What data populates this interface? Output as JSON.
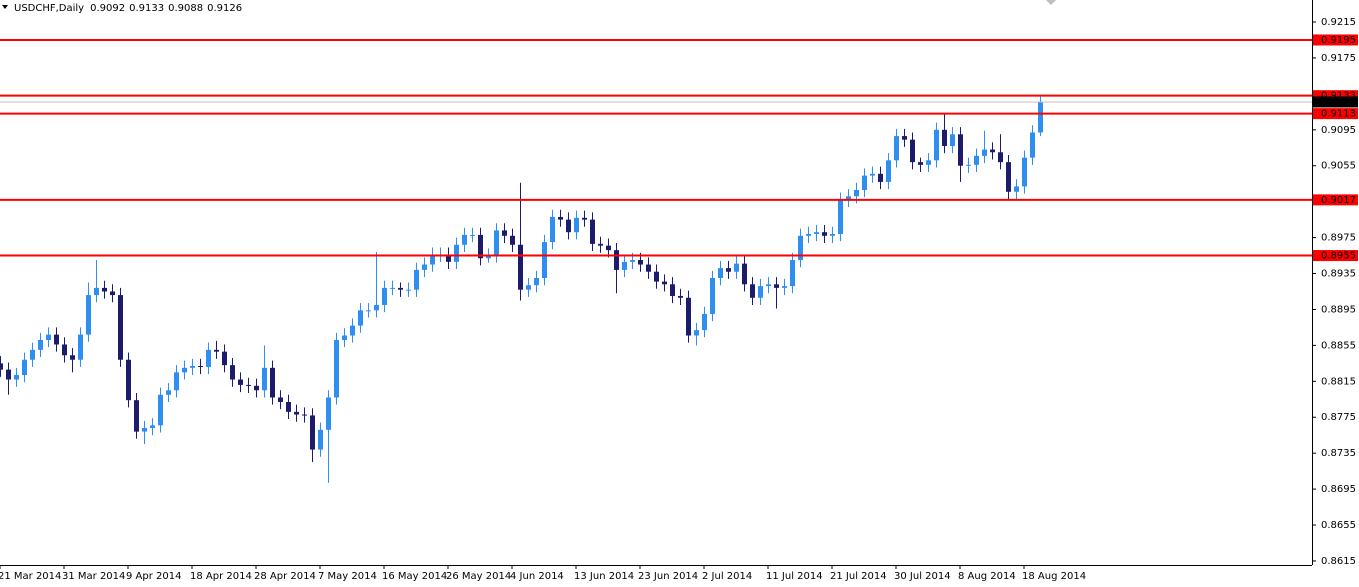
{
  "chart_data": {
    "type": "candlestick",
    "title": "USDCHF,Daily",
    "categories": [
      "21 Mar 2014",
      null,
      null,
      null,
      null,
      null,
      null,
      null,
      "31 Mar 2014",
      null,
      null,
      null,
      null,
      null,
      null,
      null,
      "9 Apr 2014",
      null,
      null,
      null,
      null,
      null,
      null,
      null,
      "18 Apr 2014",
      null,
      null,
      null,
      null,
      null,
      null,
      null,
      "28 Apr 2014",
      null,
      null,
      null,
      null,
      null,
      null,
      null,
      "7 May 2014",
      null,
      null,
      null,
      null,
      null,
      null,
      null,
      "16 May 2014",
      null,
      null,
      null,
      null,
      null,
      null,
      null,
      "26 May 2014",
      null,
      null,
      null,
      null,
      null,
      null,
      null,
      "4 Jun 2014",
      null,
      null,
      null,
      null,
      null,
      null,
      null,
      "13 Jun 2014",
      null,
      null,
      null,
      null,
      null,
      null,
      null,
      "23 Jun 2014",
      null,
      null,
      null,
      null,
      null,
      null,
      null,
      "2 Jul 2014",
      null,
      null,
      null,
      null,
      null,
      null,
      null,
      "11 Jul 2014",
      null,
      null,
      null,
      null,
      null,
      null,
      null,
      "21 Jul 2014",
      null,
      null,
      null,
      null,
      null,
      null,
      null,
      "30 Jul 2014",
      null,
      null,
      null,
      null,
      null,
      null,
      null,
      "8 Aug 2014",
      null,
      null,
      null,
      null,
      null,
      null,
      null,
      "18 Aug 2014",
      null,
      null
    ],
    "open": [
      0.8835,
      0.8828,
      0.8817,
      0.8822,
      0.8839,
      0.885,
      0.8861,
      0.8867,
      0.8856,
      0.8844,
      0.8839,
      0.8867,
      0.8911,
      0.8919,
      0.8915,
      0.8911,
      0.8839,
      0.8794,
      0.8759,
      0.8763,
      0.8766,
      0.88,
      0.8805,
      0.8825,
      0.883,
      0.8832,
      0.8831,
      0.885,
      0.8848,
      0.8833,
      0.8817,
      0.8811,
      0.881,
      0.8805,
      0.883,
      0.8797,
      0.8792,
      0.8781,
      0.8778,
      0.8777,
      0.8739,
      0.8761,
      0.8797,
      0.8861,
      0.8866,
      0.8877,
      0.8894,
      0.8894,
      0.89,
      0.8919,
      0.8919,
      0.8917,
      0.8917,
      0.8939,
      0.8945,
      0.8956,
      0.8956,
      0.8948,
      0.8967,
      0.8978,
      0.8978,
      0.8952,
      0.8955,
      0.8983,
      0.8977,
      0.8967,
      0.8917,
      0.8922,
      0.893,
      0.897,
      0.8998,
      0.8995,
      0.8981,
      0.8997,
      0.8995,
      0.8968,
      0.8966,
      0.8961,
      0.8939,
      0.8948,
      0.895,
      0.8945,
      0.8937,
      0.8926,
      0.8923,
      0.891,
      0.8908,
      0.8866,
      0.8872,
      0.889,
      0.893,
      0.8941,
      0.8937,
      0.8946,
      0.8923,
      0.8908,
      0.8921,
      0.8923,
      0.8919,
      0.8921,
      0.895,
      0.8977,
      0.8979,
      0.8981,
      0.8977,
      0.8979,
      0.9017,
      0.9021,
      0.9028,
      0.9044,
      0.9046,
      0.9037,
      0.9061,
      0.9088,
      0.9084,
      0.9059,
      0.9056,
      0.9061,
      0.9095,
      0.9077,
      0.909,
      0.9055,
      0.9056,
      0.9066,
      0.9073,
      0.907,
      0.9059,
      0.9026,
      0.9032,
      0.9064,
      0.9092
    ],
    "high": [
      0.8843,
      0.8836,
      0.883,
      0.8847,
      0.8858,
      0.8869,
      0.8875,
      0.8875,
      0.8864,
      0.8852,
      0.8875,
      0.8925,
      0.895,
      0.8927,
      0.8923,
      0.8919,
      0.8847,
      0.8802,
      0.8771,
      0.8774,
      0.8808,
      0.8813,
      0.8833,
      0.8838,
      0.884,
      0.884,
      0.8858,
      0.886,
      0.8856,
      0.8841,
      0.8825,
      0.8819,
      0.8818,
      0.8855,
      0.8838,
      0.8805,
      0.88,
      0.8789,
      0.8786,
      0.8785,
      0.8769,
      0.8805,
      0.8869,
      0.8874,
      0.8885,
      0.8902,
      0.8902,
      0.8959,
      0.8927,
      0.8927,
      0.8925,
      0.8925,
      0.8947,
      0.8953,
      0.8964,
      0.8964,
      0.8964,
      0.8975,
      0.8986,
      0.8986,
      0.8986,
      0.8963,
      0.8991,
      0.8991,
      0.8985,
      0.9036,
      0.893,
      0.8938,
      0.8978,
      0.9006,
      0.9006,
      0.9003,
      0.9005,
      0.9005,
      0.9003,
      0.8976,
      0.8974,
      0.8969,
      0.8956,
      0.8958,
      0.8958,
      0.8953,
      0.8945,
      0.8934,
      0.8931,
      0.8918,
      0.8916,
      0.888,
      0.8898,
      0.8938,
      0.8949,
      0.8949,
      0.8954,
      0.8954,
      0.8931,
      0.8929,
      0.8931,
      0.8931,
      0.8929,
      0.8958,
      0.8985,
      0.8987,
      0.8989,
      0.8989,
      0.8987,
      0.9025,
      0.9029,
      0.9036,
      0.9052,
      0.9054,
      0.9054,
      0.9069,
      0.9096,
      0.9096,
      0.9092,
      0.9064,
      0.9069,
      0.9103,
      0.9113,
      0.9098,
      0.9098,
      0.9064,
      0.9074,
      0.9094,
      0.9081,
      0.909,
      0.9067,
      0.904,
      0.9072,
      0.91,
      0.9133
    ],
    "low": [
      0.882,
      0.88,
      0.8809,
      0.8814,
      0.8831,
      0.8842,
      0.8853,
      0.8848,
      0.8836,
      0.8825,
      0.8831,
      0.8859,
      0.8903,
      0.8907,
      0.8903,
      0.8831,
      0.8786,
      0.8751,
      0.8745,
      0.8755,
      0.8758,
      0.8792,
      0.8797,
      0.8817,
      0.8822,
      0.8823,
      0.8823,
      0.884,
      0.8825,
      0.8809,
      0.8803,
      0.8802,
      0.8797,
      0.8797,
      0.8789,
      0.8784,
      0.8773,
      0.877,
      0.8769,
      0.8725,
      0.8731,
      0.8702,
      0.8789,
      0.8853,
      0.8858,
      0.8869,
      0.8886,
      0.8886,
      0.8892,
      0.8911,
      0.8909,
      0.8909,
      0.8909,
      0.8931,
      0.8937,
      0.8948,
      0.894,
      0.894,
      0.8959,
      0.897,
      0.8944,
      0.8947,
      0.8947,
      0.8969,
      0.8959,
      0.8905,
      0.8909,
      0.8914,
      0.8922,
      0.8962,
      0.8987,
      0.8973,
      0.8973,
      0.8987,
      0.896,
      0.8958,
      0.8953,
      0.8913,
      0.8931,
      0.894,
      0.8937,
      0.8929,
      0.8918,
      0.8915,
      0.8902,
      0.89,
      0.8858,
      0.8855,
      0.8864,
      0.8882,
      0.8922,
      0.8929,
      0.8929,
      0.8915,
      0.89,
      0.89,
      0.8913,
      0.8896,
      0.8911,
      0.8913,
      0.8942,
      0.8969,
      0.8971,
      0.8969,
      0.8969,
      0.8971,
      0.9009,
      0.9013,
      0.902,
      0.9036,
      0.9029,
      0.9029,
      0.9053,
      0.9076,
      0.9051,
      0.9048,
      0.9048,
      0.9053,
      0.9069,
      0.9069,
      0.9037,
      0.9047,
      0.9048,
      0.9058,
      0.9062,
      0.9051,
      0.9018,
      0.9018,
      0.9024,
      0.9056,
      0.9088
    ],
    "close": [
      0.8828,
      0.8817,
      0.8822,
      0.8839,
      0.885,
      0.8861,
      0.8867,
      0.8856,
      0.8844,
      0.8839,
      0.8867,
      0.8911,
      0.8919,
      0.8915,
      0.8911,
      0.8839,
      0.8794,
      0.8759,
      0.8763,
      0.8766,
      0.88,
      0.8805,
      0.8825,
      0.883,
      0.8832,
      0.8831,
      0.885,
      0.8848,
      0.8833,
      0.8817,
      0.8811,
      0.881,
      0.8805,
      0.883,
      0.8797,
      0.8792,
      0.8781,
      0.8778,
      0.8777,
      0.8739,
      0.8761,
      0.8797,
      0.8861,
      0.8866,
      0.8877,
      0.8894,
      0.8894,
      0.89,
      0.8919,
      0.8919,
      0.8917,
      0.8917,
      0.8939,
      0.8945,
      0.8956,
      0.8956,
      0.8948,
      0.8967,
      0.8978,
      0.8978,
      0.8952,
      0.8955,
      0.8983,
      0.8977,
      0.8967,
      0.8917,
      0.8922,
      0.893,
      0.897,
      0.8998,
      0.8995,
      0.8981,
      0.8997,
      0.8995,
      0.8968,
      0.8966,
      0.8961,
      0.8939,
      0.8948,
      0.895,
      0.8945,
      0.8937,
      0.8926,
      0.8923,
      0.891,
      0.8908,
      0.8866,
      0.8872,
      0.889,
      0.893,
      0.8941,
      0.8937,
      0.8946,
      0.8923,
      0.8908,
      0.8921,
      0.8923,
      0.8919,
      0.8921,
      0.895,
      0.8977,
      0.8979,
      0.8981,
      0.8977,
      0.8979,
      0.9017,
      0.9021,
      0.9028,
      0.9044,
      0.9046,
      0.9037,
      0.9061,
      0.9088,
      0.9084,
      0.9059,
      0.9056,
      0.9061,
      0.9095,
      0.9077,
      0.909,
      0.9055,
      0.9056,
      0.9066,
      0.9073,
      0.907,
      0.9059,
      0.9026,
      0.9032,
      0.9064,
      0.9092,
      0.9126
    ],
    "up_color": "#2e8ff0",
    "down_color": "#1c1c6b",
    "levels": [
      0.9195,
      0.9133,
      0.9113,
      0.9017,
      0.8955
    ],
    "level_color": "#ff0000",
    "ylim": [
      0.86105,
      0.92395
    ],
    "yticks": [
      0.9215,
      0.9175,
      0.9095,
      0.9055,
      0.8975,
      0.8935,
      0.8895,
      0.8855,
      0.8815,
      0.8775,
      0.8735,
      0.8695,
      0.8655,
      0.8615
    ]
  }
}
